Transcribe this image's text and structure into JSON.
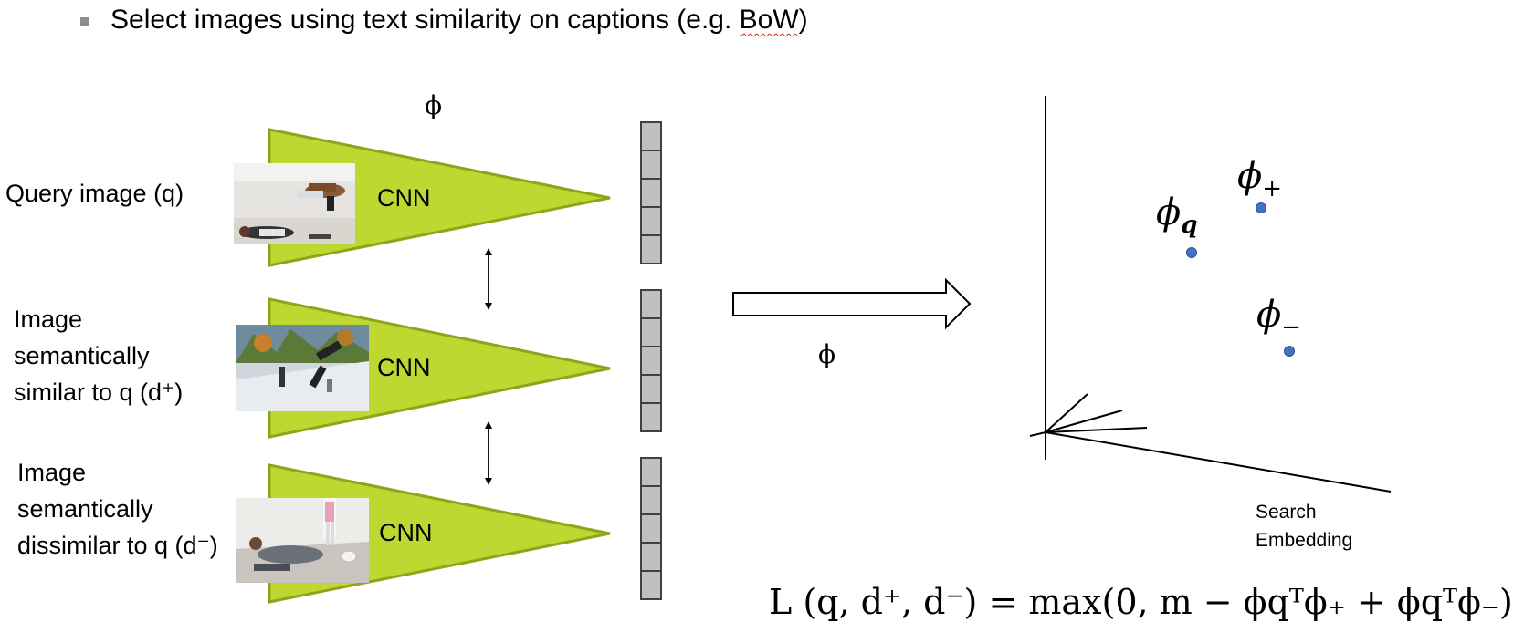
{
  "bullet": {
    "text": "Select images using text similarity on captions (e.g. ",
    "bow": "BoW",
    "close": ")"
  },
  "phi_symbol": "ϕ",
  "rows": [
    {
      "label_lines": [
        "Query image (q)"
      ],
      "cnn": "CNN"
    },
    {
      "label_lines": [
        "Image",
        "semantically",
        "similar to q (d⁺)"
      ],
      "cnn": "CNN"
    },
    {
      "label_lines": [
        "Image",
        "semantically",
        "dissimilar to q (d⁻)"
      ],
      "cnn": "CNN"
    }
  ],
  "embedding": {
    "points": [
      {
        "label_base": "ϕ",
        "label_sub": "q"
      },
      {
        "label_base": "ϕ",
        "label_sub": "+"
      },
      {
        "label_base": "ϕ",
        "label_sub": "−"
      }
    ],
    "caption_lines": [
      "Search",
      "Embedding"
    ]
  },
  "formula": "L  (q, d⁺, d⁻) =  max(0, m − ϕqᵀϕ₊ + ϕqᵀϕ₋)",
  "colors": {
    "cnn_fill": "#bfd731",
    "cnn_stroke": "#8ea41a",
    "cell_fill": "#bfbfbf",
    "cell_stroke": "#404040",
    "point": "#4472c4"
  }
}
